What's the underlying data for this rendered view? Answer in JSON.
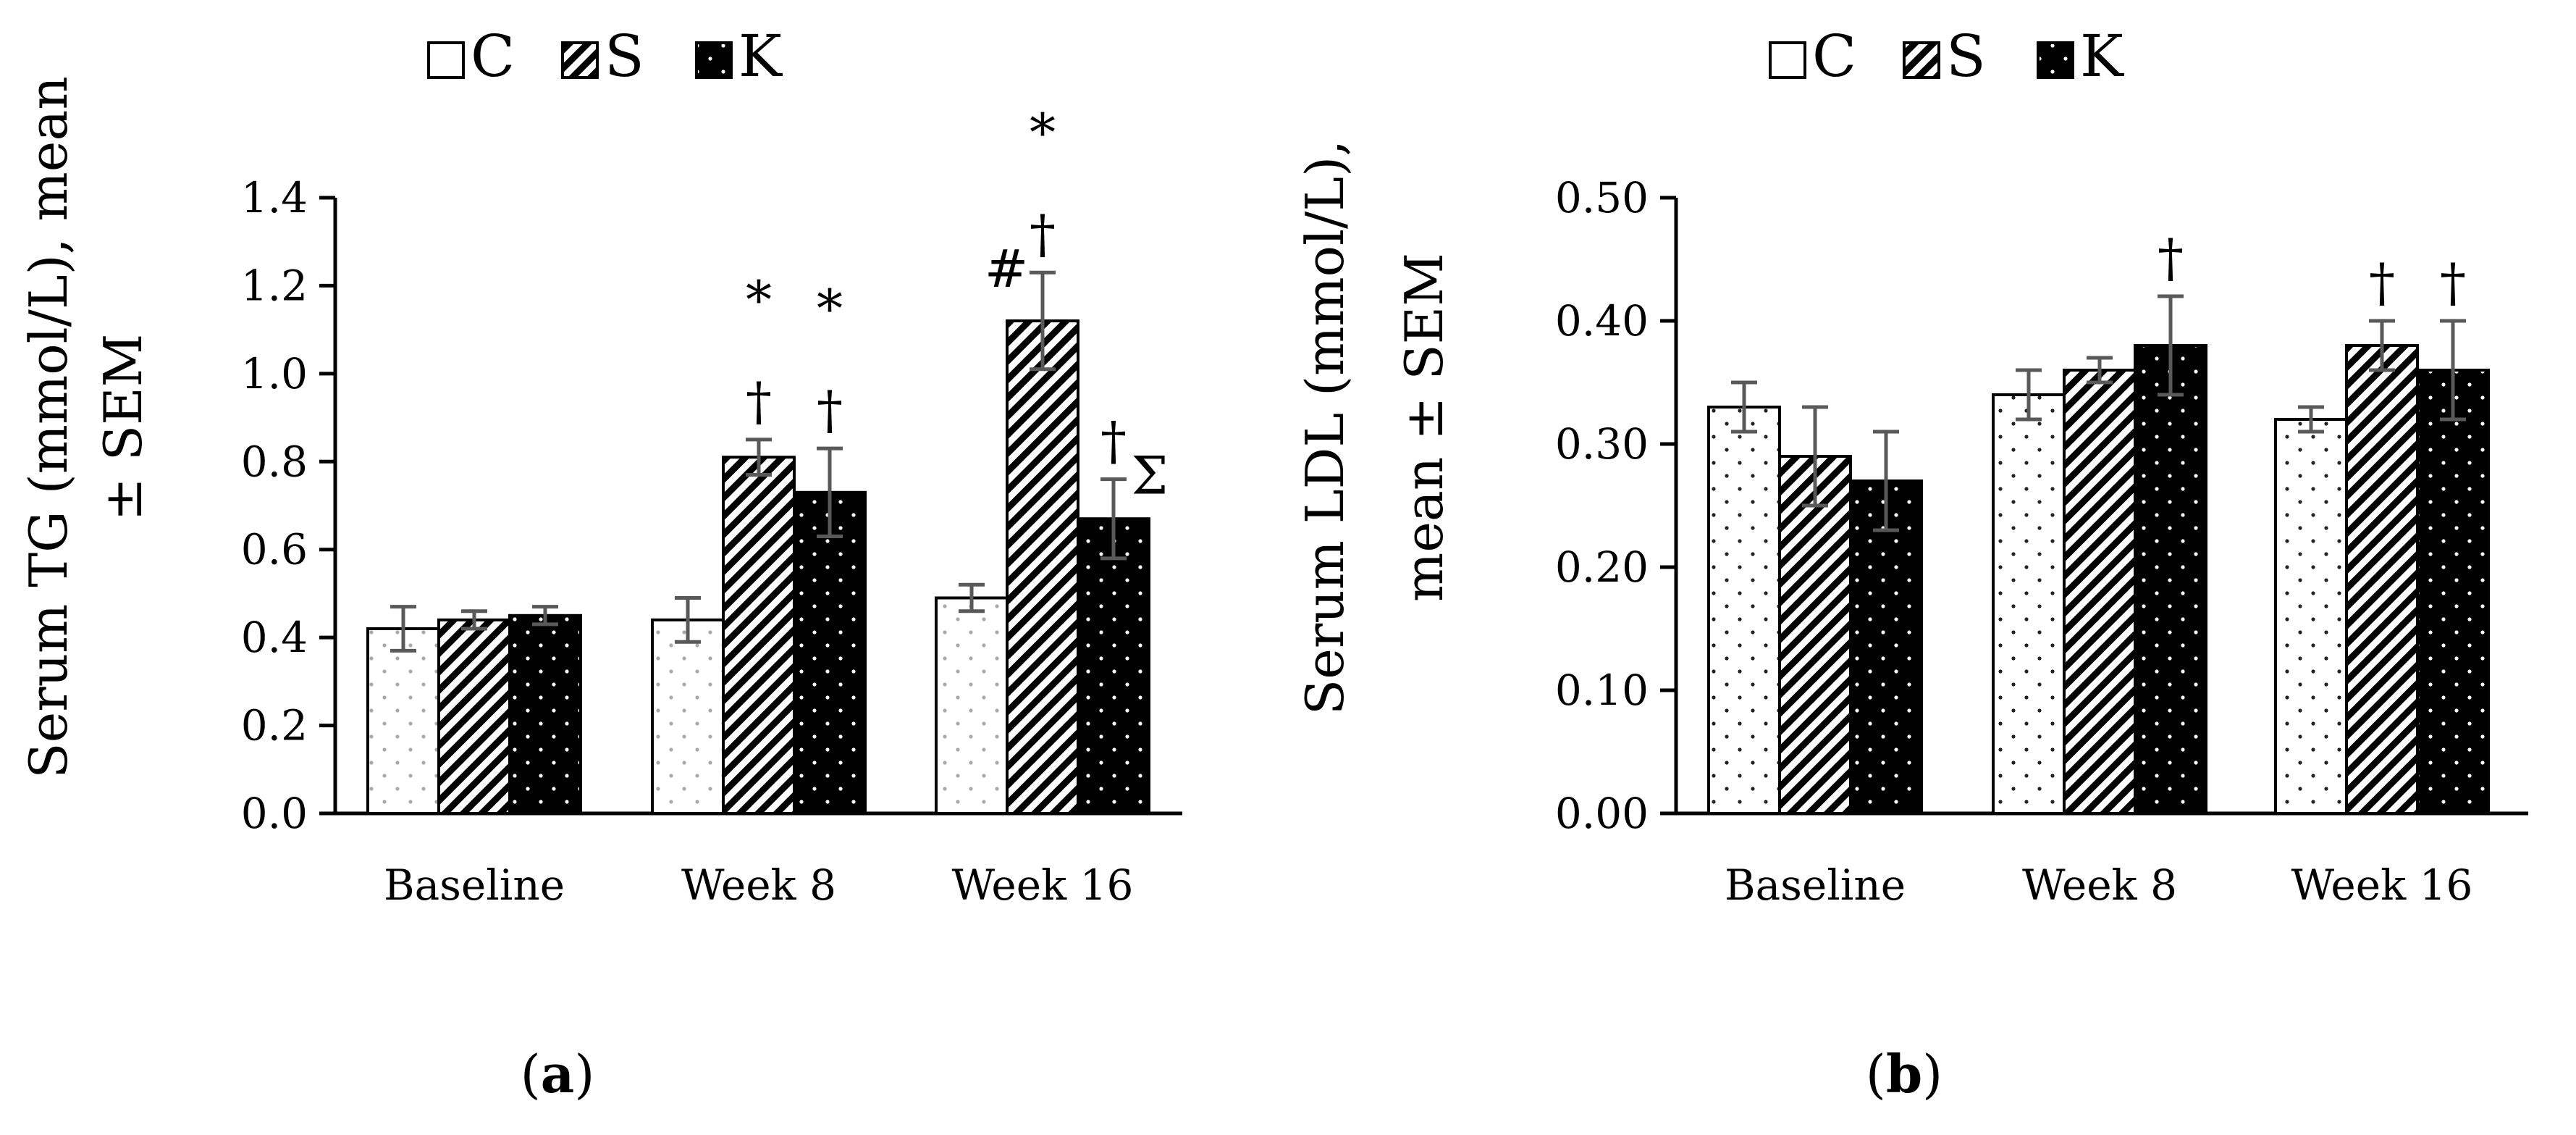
{
  "chart_data": [
    {
      "type": "bar",
      "panel_label": "a",
      "ylabel_lines": [
        "Serum TG (mmol/L), mean",
        "± SEM"
      ],
      "ylim": [
        0,
        1.4
      ],
      "yticks": [
        "0.0",
        "0.2",
        "0.4",
        "0.6",
        "0.8",
        "1.0",
        "1.2",
        "1.4"
      ],
      "categories": [
        "Baseline",
        "Week 8",
        "Week 16"
      ],
      "legend": [
        "C",
        "S",
        "K"
      ],
      "grid": false,
      "series": [
        {
          "name": "C",
          "pattern": "dots-gray",
          "values": [
            0.42,
            0.44,
            0.49
          ],
          "errors": [
            0.05,
            0.05,
            0.03
          ]
        },
        {
          "name": "S",
          "pattern": "diagonal",
          "values": [
            0.44,
            0.81,
            1.12
          ],
          "errors": [
            0.02,
            0.04,
            0.11
          ]
        },
        {
          "name": "K",
          "pattern": "black-dots",
          "values": [
            0.45,
            0.73,
            0.67
          ],
          "errors": [
            0.02,
            0.1,
            0.09
          ]
        }
      ],
      "annotations": [
        {
          "category": 1,
          "series": 1,
          "marks": [
            "†",
            "*"
          ]
        },
        {
          "category": 1,
          "series": 2,
          "marks": [
            "†",
            "*"
          ]
        },
        {
          "category": 2,
          "series": 1,
          "marks": [
            "#",
            "†",
            "*"
          ]
        },
        {
          "category": 2,
          "series": 2,
          "marks": [
            "†",
            "Σ"
          ]
        }
      ]
    },
    {
      "type": "bar",
      "panel_label": "b",
      "ylabel_lines": [
        "Serum LDL (mmol/L),",
        "mean ± SEM"
      ],
      "ylim": [
        0,
        0.5
      ],
      "yticks": [
        "0.00",
        "0.10",
        "0.20",
        "0.30",
        "0.40",
        "0.50"
      ],
      "categories": [
        "Baseline",
        "Week 8",
        "Week 16"
      ],
      "legend": [
        "C",
        "S",
        "K"
      ],
      "grid": false,
      "series": [
        {
          "name": "C",
          "pattern": "dots",
          "values": [
            0.33,
            0.34,
            0.32
          ],
          "errors": [
            0.02,
            0.02,
            0.01
          ]
        },
        {
          "name": "S",
          "pattern": "diagonal",
          "values": [
            0.29,
            0.36,
            0.38
          ],
          "errors": [
            0.04,
            0.01,
            0.02
          ]
        },
        {
          "name": "K",
          "pattern": "black-dots",
          "values": [
            0.27,
            0.38,
            0.36
          ],
          "errors": [
            0.04,
            0.04,
            0.04
          ]
        }
      ],
      "annotations": [
        {
          "category": 1,
          "series": 2,
          "marks": [
            "†"
          ]
        },
        {
          "category": 2,
          "series": 1,
          "marks": [
            "†"
          ]
        },
        {
          "category": 2,
          "series": 2,
          "marks": [
            "†"
          ]
        }
      ]
    }
  ]
}
